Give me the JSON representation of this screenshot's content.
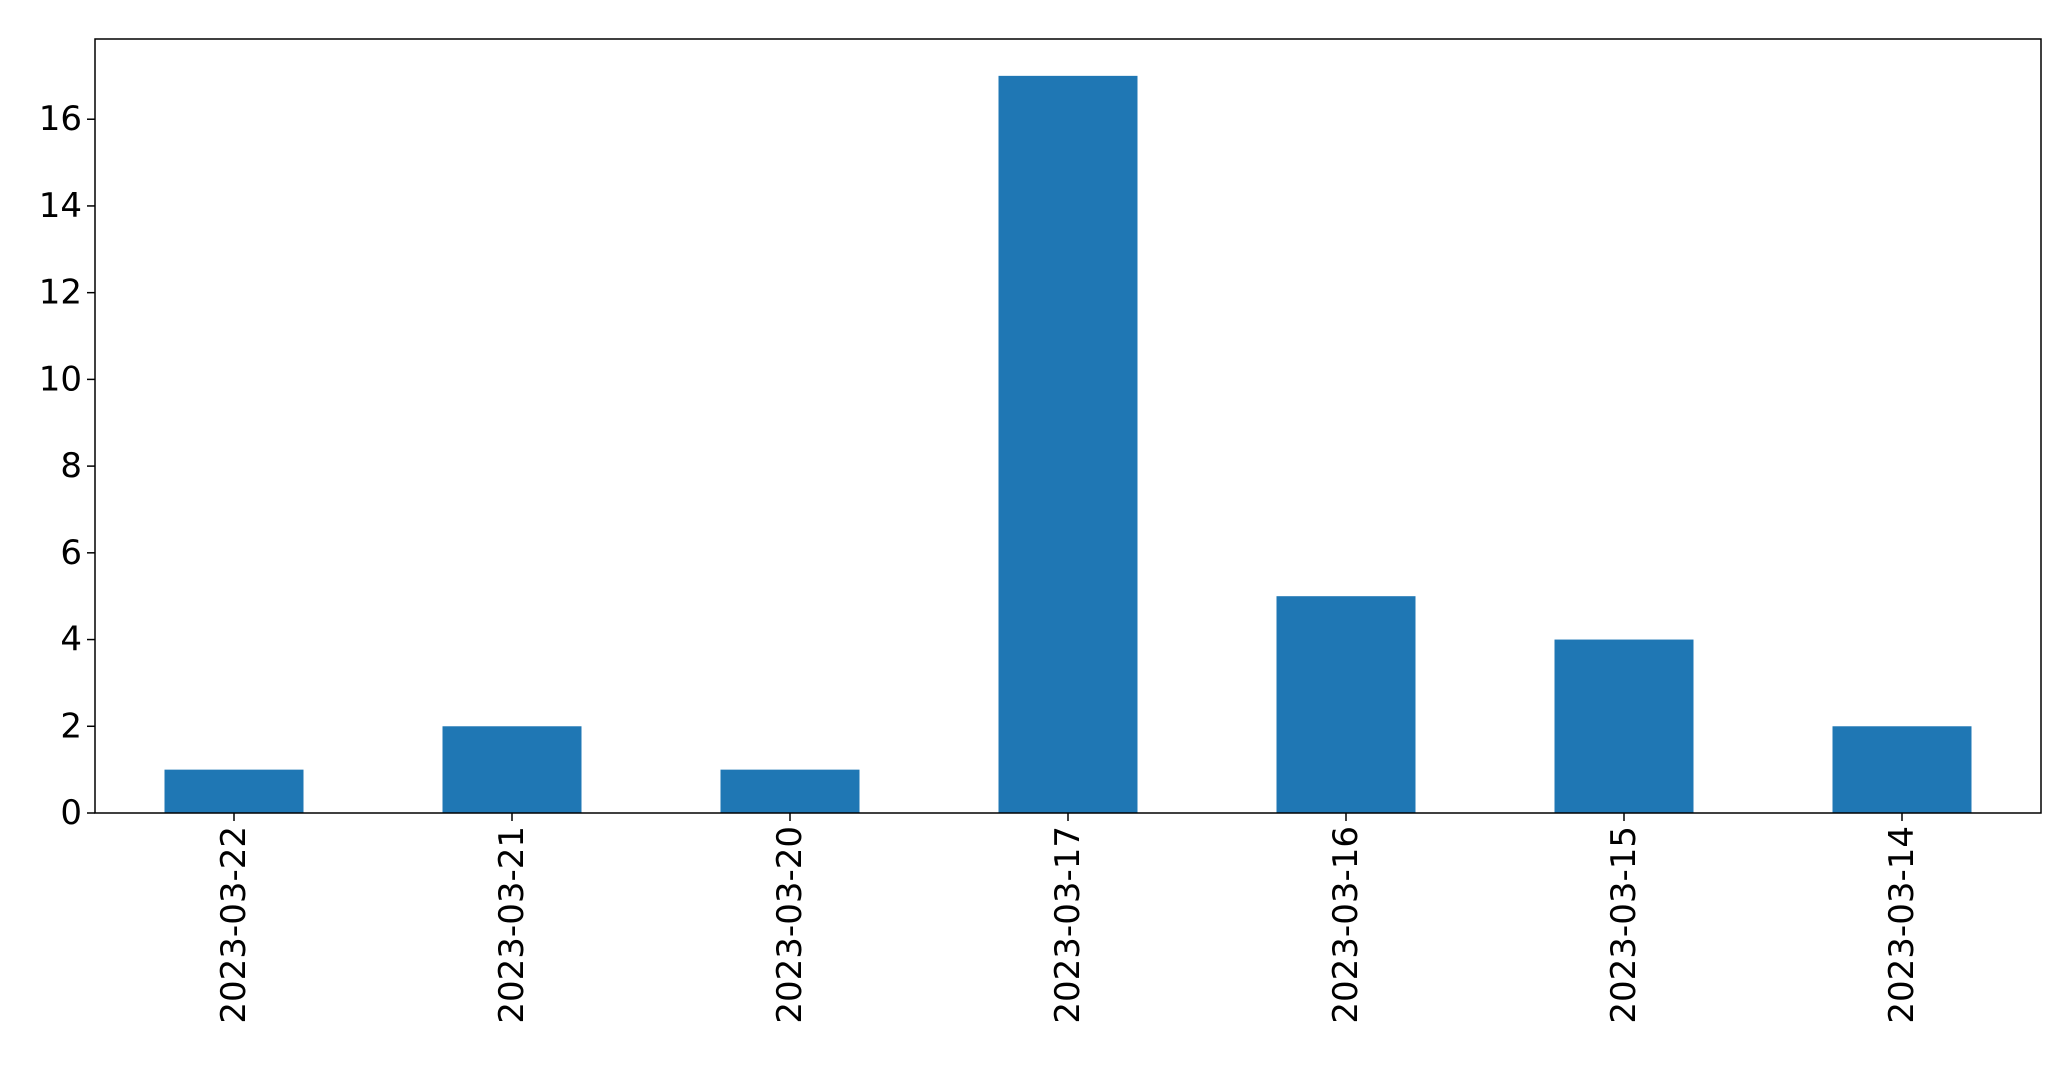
{
  "chart_data": {
    "type": "bar",
    "title": "",
    "xlabel": "",
    "ylabel": "",
    "categories": [
      "2023-03-22",
      "2023-03-21",
      "2023-03-20",
      "2023-03-17",
      "2023-03-16",
      "2023-03-15",
      "2023-03-14"
    ],
    "values": [
      1,
      2,
      1,
      17,
      5,
      4,
      2
    ],
    "ylim": [
      0,
      17.85
    ],
    "yticks": [
      0,
      2,
      4,
      6,
      8,
      10,
      12,
      14,
      16
    ],
    "bar_color": "#1f77b4",
    "grid": false,
    "legend": "none",
    "x_tick_rotation": "vertical"
  }
}
